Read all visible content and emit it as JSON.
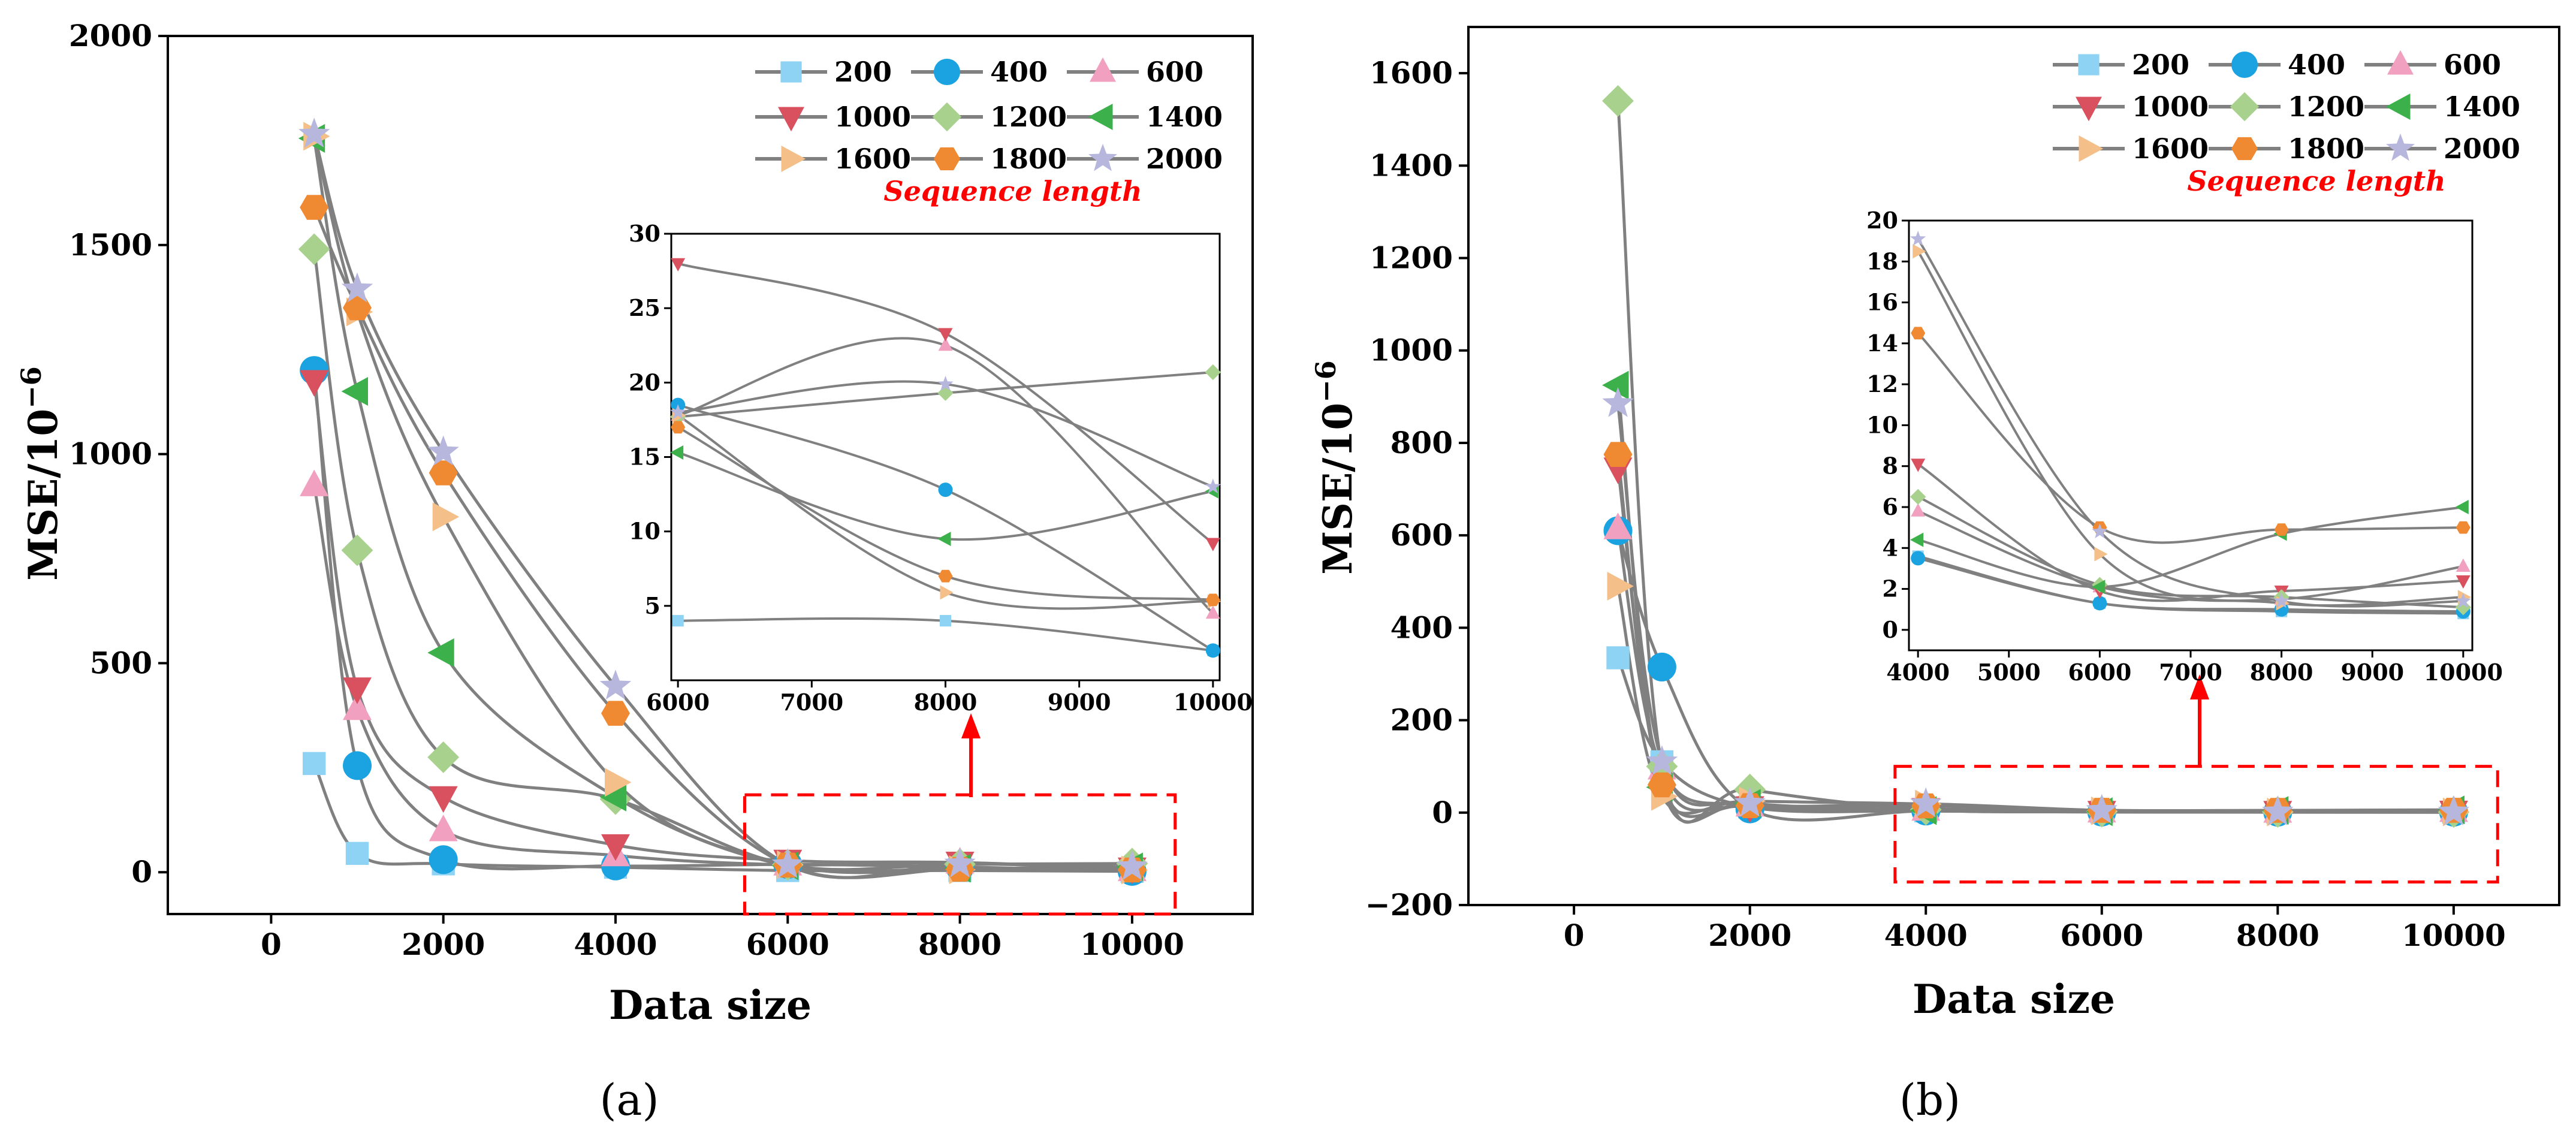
{
  "legend_title": "Sequence length",
  "series_colors": [
    "#8fd3f4",
    "#1aa3e0",
    "#f1a0bf",
    "#d9505e",
    "#a9d18e",
    "#3cb04a",
    "#f4bf89",
    "#f08a32",
    "#b7b7de"
  ],
  "series_markers": [
    "square",
    "circle",
    "triangle-up",
    "triangle-down",
    "diamond",
    "triangle-left",
    "triangle-right",
    "hexagon",
    "star"
  ],
  "chart_data": [
    {
      "type": "line",
      "panel_label": "(a)",
      "xlabel": "Data size",
      "ylabel_base": "MSE/10",
      "ylabel_exp": "−6",
      "xlim": [
        -1200,
        11400
      ],
      "ylim": [
        -100,
        2000
      ],
      "xticks": [
        0,
        2000,
        4000,
        6000,
        8000,
        10000
      ],
      "xtick_labels": [
        "0",
        "2000",
        "4000",
        "6000",
        "8000",
        "10000"
      ],
      "yticks": [
        0,
        500,
        1000,
        1500,
        2000
      ],
      "ytick_labels": [
        "0",
        "500",
        "1000",
        "1500",
        "2000"
      ],
      "x": [
        500,
        1000,
        2000,
        4000,
        6000,
        8000,
        10000
      ],
      "series": [
        {
          "name": "200",
          "values": [
            260,
            45,
            20,
            12,
            4,
            4,
            2
          ]
        },
        {
          "name": "400",
          "values": [
            1200,
            255,
            30,
            15,
            18.5,
            12.8,
            2
          ]
        },
        {
          "name": "600",
          "values": [
            925,
            390,
            100,
            40,
            17.8,
            22.5,
            4.5
          ]
        },
        {
          "name": "1000",
          "values": [
            1175,
            440,
            180,
            65,
            28,
            23.3,
            9.2
          ]
        },
        {
          "name": "1200",
          "values": [
            1490,
            770,
            275,
            175,
            17.7,
            19.3,
            20.7
          ]
        },
        {
          "name": "1400",
          "values": [
            1755,
            1150,
            525,
            180,
            15.3,
            9.5,
            12.7
          ]
        },
        {
          "name": "1600",
          "values": [
            1760,
            1340,
            850,
            215,
            17.8,
            5.9,
            5.3
          ]
        },
        {
          "name": "1800",
          "values": [
            1590,
            1350,
            955,
            380,
            17,
            7,
            5.4
          ]
        },
        {
          "name": "2000",
          "values": [
            1765,
            1395,
            1005,
            445,
            18,
            19.9,
            13
          ]
        }
      ],
      "inset": {
        "xlim": [
          5950,
          10050
        ],
        "ylim": [
          0,
          30
        ],
        "xticks": [
          6000,
          7000,
          8000,
          9000,
          10000
        ],
        "xtick_labels": [
          "6000",
          "7000",
          "8000",
          "9000",
          "10000"
        ],
        "yticks": [
          5,
          10,
          15,
          20,
          25,
          30
        ],
        "ytick_labels": [
          "5",
          "10",
          "15",
          "20",
          "25",
          "30"
        ],
        "x": [
          6000,
          8000,
          10000
        ]
      },
      "zoom_region": {
        "x": [
          5500,
          10500
        ],
        "y": [
          -100,
          185
        ]
      }
    },
    {
      "type": "line",
      "panel_label": "(b)",
      "xlabel": "Data size",
      "ylabel_base": "MSE/10",
      "ylabel_exp": "−6",
      "xlim": [
        -1200,
        11200
      ],
      "ylim": [
        -200,
        1700
      ],
      "xticks": [
        0,
        2000,
        4000,
        6000,
        8000,
        10000
      ],
      "xtick_labels": [
        "0",
        "2000",
        "4000",
        "6000",
        "8000",
        "10000"
      ],
      "yticks": [
        -200,
        0,
        200,
        400,
        600,
        800,
        1000,
        1200,
        1400,
        1600
      ],
      "ytick_labels": [
        "−200",
        "0",
        "200",
        "400",
        "600",
        "800",
        "1000",
        "1200",
        "1400",
        "1600"
      ],
      "x": [
        500,
        1000,
        2000,
        4000,
        6000,
        8000,
        10000
      ],
      "series": [
        {
          "name": "200",
          "values": [
            335,
            110,
            12,
            3.6,
            1.3,
            0.9,
            0.8
          ]
        },
        {
          "name": "400",
          "values": [
            610,
            315,
            8,
            3.5,
            1.3,
            1.0,
            0.9
          ]
        },
        {
          "name": "600",
          "values": [
            615,
            95,
            15,
            5.8,
            2.1,
            1.5,
            3.1
          ]
        },
        {
          "name": "1000",
          "values": [
            745,
            80,
            12,
            8.1,
            1.9,
            1.9,
            2.4
          ]
        },
        {
          "name": "1200",
          "values": [
            1540,
            100,
            50,
            6.5,
            2.2,
            1.6,
            1.1
          ]
        },
        {
          "name": "1400",
          "values": [
            925,
            55,
            20,
            4.4,
            2.1,
            4.7,
            6.0
          ]
        },
        {
          "name": "1600",
          "values": [
            490,
            35,
            25,
            18.5,
            3.7,
            1.3,
            1.6
          ]
        },
        {
          "name": "1800",
          "values": [
            775,
            60,
            15,
            14.5,
            5.0,
            4.9,
            5.0
          ]
        },
        {
          "name": "2000",
          "values": [
            885,
            110,
            20,
            19.1,
            4.8,
            1.4,
            1.4
          ]
        }
      ],
      "inset": {
        "xlim": [
          3900,
          10100
        ],
        "ylim": [
          -1,
          20
        ],
        "xticks": [
          4000,
          5000,
          6000,
          7000,
          8000,
          9000,
          10000
        ],
        "xtick_labels": [
          "4000",
          "5000",
          "6000",
          "7000",
          "8000",
          "9000",
          "10000"
        ],
        "yticks": [
          0,
          2,
          4,
          6,
          8,
          10,
          12,
          14,
          16,
          18,
          20
        ],
        "ytick_labels": [
          "0",
          "2",
          "4",
          "6",
          "8",
          "10",
          "12",
          "14",
          "16",
          "18",
          "20"
        ],
        "x": [
          4000,
          6000,
          8000,
          10000
        ]
      },
      "zoom_region": {
        "x": [
          3650,
          10500
        ],
        "y": [
          -150,
          100
        ]
      }
    }
  ]
}
